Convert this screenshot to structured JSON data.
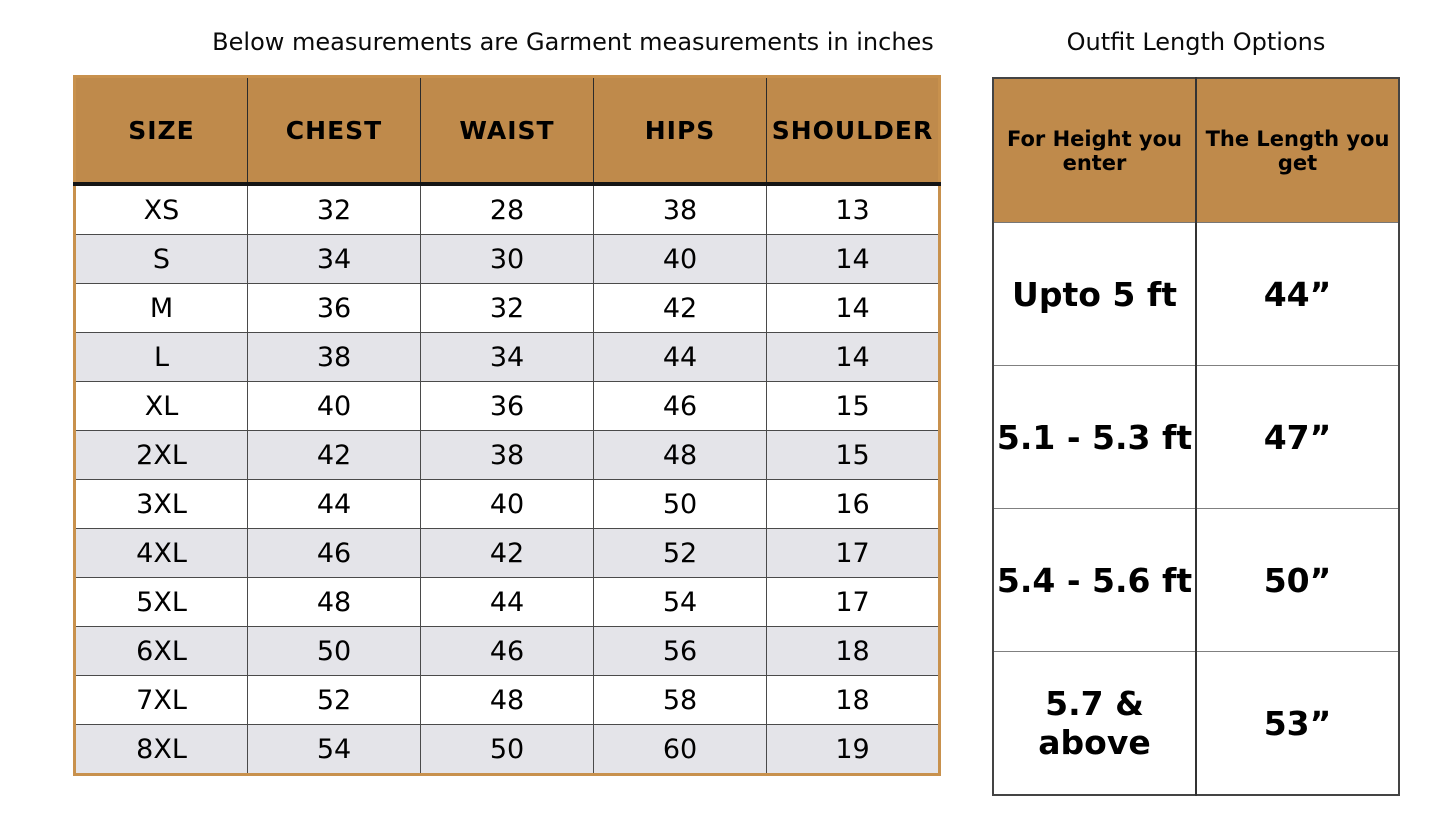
{
  "size_table": {
    "title": "Below measurements are Garment measurements in inches",
    "columns": [
      "SIZE",
      "CHEST",
      "WAIST",
      "HIPS",
      "SHOULDER"
    ],
    "rows": [
      [
        "XS",
        "32",
        "28",
        "38",
        "13"
      ],
      [
        "S",
        "34",
        "30",
        "40",
        "14"
      ],
      [
        "M",
        "36",
        "32",
        "42",
        "14"
      ],
      [
        "L",
        "38",
        "34",
        "44",
        "14"
      ],
      [
        "XL",
        "40",
        "36",
        "46",
        "15"
      ],
      [
        "2XL",
        "42",
        "38",
        "48",
        "15"
      ],
      [
        "3XL",
        "44",
        "40",
        "50",
        "16"
      ],
      [
        "4XL",
        "46",
        "42",
        "52",
        "17"
      ],
      [
        "5XL",
        "48",
        "44",
        "54",
        "17"
      ],
      [
        "6XL",
        "50",
        "46",
        "56",
        "18"
      ],
      [
        "7XL",
        "52",
        "48",
        "58",
        "18"
      ],
      [
        "8XL",
        "54",
        "50",
        "60",
        "19"
      ]
    ]
  },
  "length_table": {
    "title": "Outfit Length Options",
    "columns": [
      "For Height you enter",
      "The Length you get"
    ],
    "rows": [
      [
        "Upto 5 ft",
        "44”"
      ],
      [
        "5.1 - 5.3 ft",
        "47”"
      ],
      [
        "5.4 - 5.6 ft",
        "50”"
      ],
      [
        "5.7 & above",
        "53”"
      ]
    ]
  },
  "colors": {
    "header_brown": "#BF8A4B",
    "row_alt_gray": "#E4E4E9",
    "row_white": "#FFFFFF",
    "table_outer_border": "#C8914D",
    "grid_line": "#4A4A4A"
  }
}
